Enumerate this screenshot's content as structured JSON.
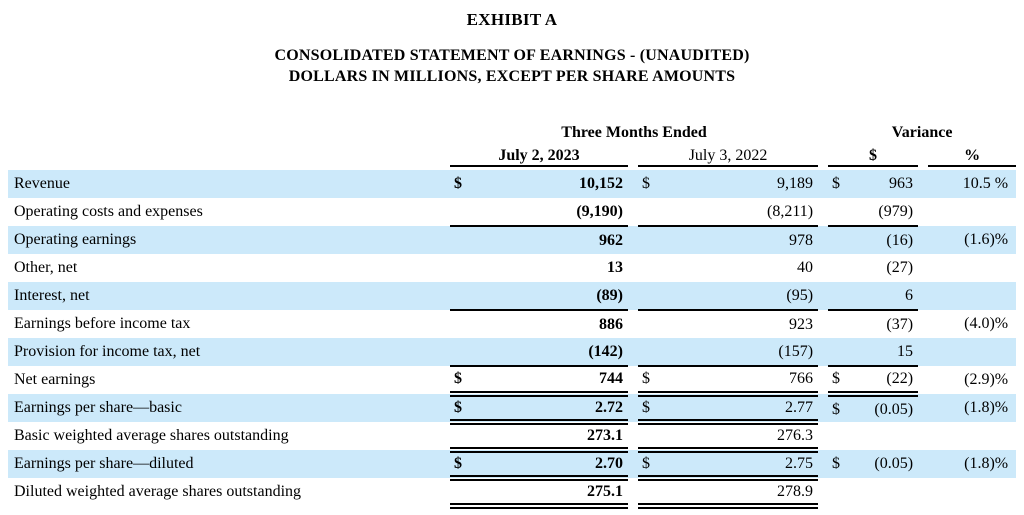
{
  "title": "EXHIBIT A",
  "subtitle_line1": "CONSOLIDATED STATEMENT OF EARNINGS - (UNAUDITED)",
  "subtitle_line2": "DOLLARS IN MILLIONS, EXCEPT PER SHARE AMOUNTS",
  "table": {
    "period_group_header": "Three Months Ended",
    "variance_group_header": "Variance",
    "col_2023_label": "July 2, 2023",
    "col_2022_label": "July 3, 2022",
    "variance_dollar_label": "$",
    "variance_percent_label": "%",
    "shade_color": "#cce9fa",
    "rows": [
      {
        "label": "Revenue",
        "shade": true,
        "cur1": "$",
        "val1": "10,152",
        "cur2": "$",
        "val2": "9,189",
        "cur3": "$",
        "val3": "963",
        "pct": "10.5 %",
        "rule": "none",
        "rule_var": "none"
      },
      {
        "label": "Operating costs and expenses",
        "shade": false,
        "cur1": "",
        "val1": "(9,190)",
        "cur2": "",
        "val2": "(8,211)",
        "cur3": "",
        "val3": "(979)",
        "pct": "",
        "rule": "single",
        "rule_var": "single"
      },
      {
        "label": "Operating earnings",
        "shade": true,
        "cur1": "",
        "val1": "962",
        "cur2": "",
        "val2": "978",
        "cur3": "",
        "val3": "(16)",
        "pct": "(1.6)%",
        "rule": "none",
        "rule_var": "none"
      },
      {
        "label": "Other, net",
        "shade": false,
        "cur1": "",
        "val1": "13",
        "cur2": "",
        "val2": "40",
        "cur3": "",
        "val3": "(27)",
        "pct": "",
        "rule": "none",
        "rule_var": "none"
      },
      {
        "label": "Interest, net",
        "shade": true,
        "cur1": "",
        "val1": "(89)",
        "cur2": "",
        "val2": "(95)",
        "cur3": "",
        "val3": "6",
        "pct": "",
        "rule": "single",
        "rule_var": "single"
      },
      {
        "label": "Earnings before income tax",
        "shade": false,
        "cur1": "",
        "val1": "886",
        "cur2": "",
        "val2": "923",
        "cur3": "",
        "val3": "(37)",
        "pct": "(4.0)%",
        "rule": "none",
        "rule_var": "none"
      },
      {
        "label": "Provision for income tax, net",
        "shade": true,
        "cur1": "",
        "val1": "(142)",
        "cur2": "",
        "val2": "(157)",
        "cur3": "",
        "val3": "15",
        "pct": "",
        "rule": "single",
        "rule_var": "single"
      },
      {
        "label": "Net earnings",
        "shade": false,
        "cur1": "$",
        "val1": "744",
        "cur2": "$",
        "val2": "766",
        "cur3": "$",
        "val3": "(22)",
        "pct": "(2.9)%",
        "rule": "double",
        "rule_var": "double"
      },
      {
        "label": "Earnings per share—basic",
        "shade": true,
        "cur1": "$",
        "val1": "2.72",
        "cur2": "$",
        "val2": "2.77",
        "cur3": "$",
        "val3": "(0.05)",
        "pct": "(1.8)%",
        "rule": "double",
        "rule_var": "none"
      },
      {
        "label": "Basic weighted average shares outstanding",
        "shade": false,
        "cur1": "",
        "val1": "273.1",
        "cur2": "",
        "val2": "276.3",
        "cur3": "",
        "val3": "",
        "pct": "",
        "rule": "double",
        "rule_var": "none"
      },
      {
        "label": "Earnings per share—diluted",
        "shade": true,
        "cur1": "$",
        "val1": "2.70",
        "cur2": "$",
        "val2": "2.75",
        "cur3": "$",
        "val3": "(0.05)",
        "pct": "(1.8)%",
        "rule": "double",
        "rule_var": "none"
      },
      {
        "label": "Diluted weighted average shares outstanding",
        "shade": false,
        "cur1": "",
        "val1": "275.1",
        "cur2": "",
        "val2": "278.9",
        "cur3": "",
        "val3": "",
        "pct": "",
        "rule": "double",
        "rule_var": "none"
      }
    ]
  }
}
